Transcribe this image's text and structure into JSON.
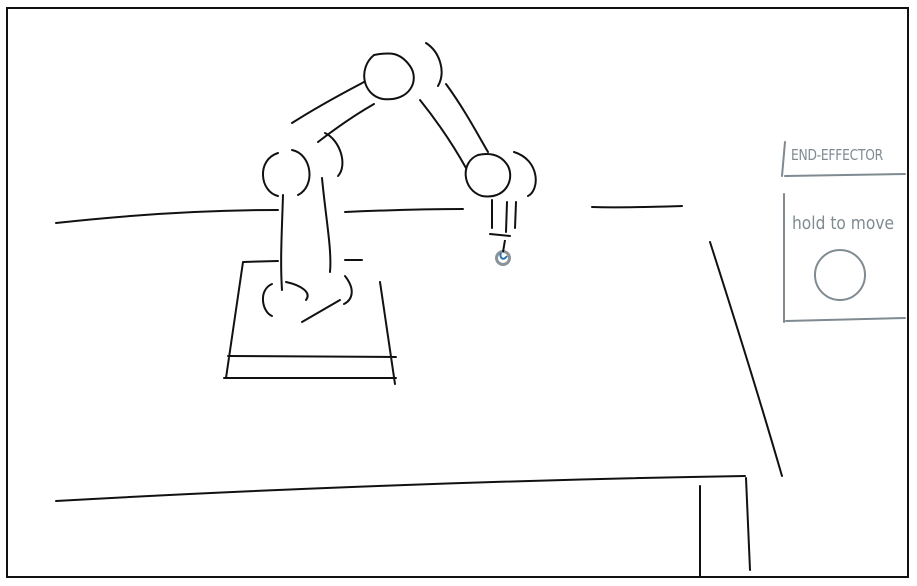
{
  "end_effector_panel": {
    "title": "END-EFFECTOR",
    "hint": "hold to move",
    "button_icon": "circle-icon"
  },
  "colors": {
    "sketch_ink": "#111111",
    "panel_ink": "#7f8a91",
    "gripper_marker": "#2a6fb0"
  }
}
